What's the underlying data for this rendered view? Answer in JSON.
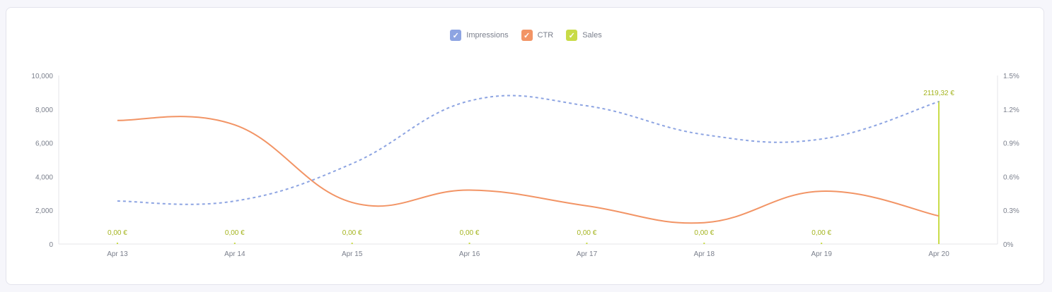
{
  "chart_data": {
    "type": "line",
    "categories": [
      "Apr 13",
      "Apr 14",
      "Apr 15",
      "Apr 16",
      "Apr 17",
      "Apr 18",
      "Apr 19",
      "Apr 20"
    ],
    "series": [
      {
        "name": "Impressions",
        "axis": "left",
        "style": "dashed smooth line",
        "color": "#8da4e2",
        "values": [
          2550,
          2550,
          4770,
          8490,
          8200,
          6490,
          6230,
          8450
        ]
      },
      {
        "name": "CTR",
        "axis": "right",
        "style": "smooth line",
        "color": "#f29465",
        "values": [
          1.1,
          1.06,
          0.37,
          0.48,
          0.34,
          0.19,
          0.47,
          0.25
        ]
      },
      {
        "name": "Sales",
        "axis": "hidden",
        "style": "bar",
        "color": "#c8db47",
        "values": [
          0,
          0,
          0,
          0,
          0,
          0,
          0,
          2119.32
        ],
        "labels": [
          "0,00  €",
          "0,00  €",
          "0,00  €",
          "0,00  €",
          "0,00  €",
          "0,00  €",
          "0,00  €",
          "2119,32  €"
        ]
      }
    ],
    "y_left": {
      "range": [
        0,
        10000
      ],
      "ticks": [
        "0",
        "2,000",
        "4,000",
        "6,000",
        "8,000",
        "10,000"
      ]
    },
    "y_right": {
      "range": [
        0,
        1.5
      ],
      "ticks": [
        "0%",
        "0.3%",
        "0.6%",
        "0.9%",
        "1.2%",
        "1.5%"
      ]
    },
    "legend_position": "top-center",
    "grid": false,
    "label_color": "#a4b41e"
  }
}
